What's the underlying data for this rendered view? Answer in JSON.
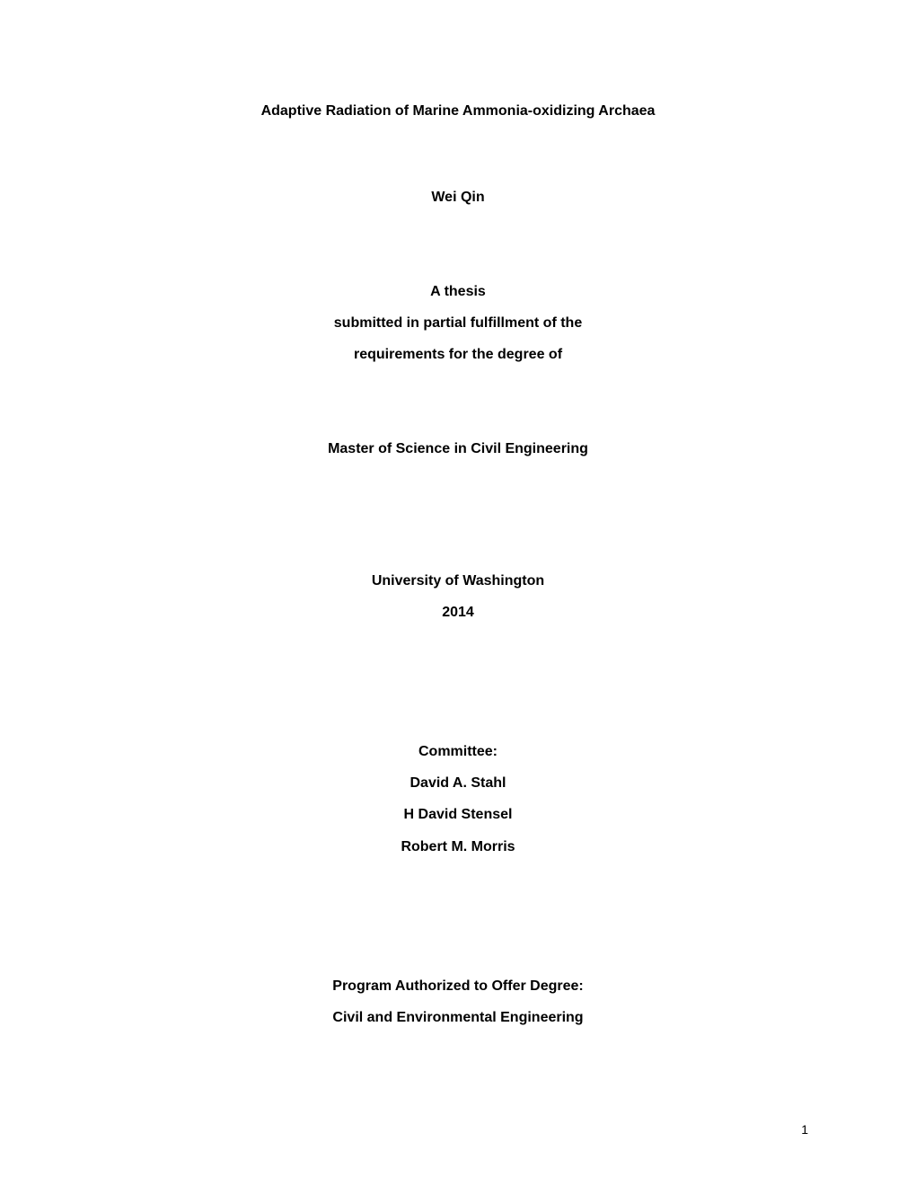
{
  "title": "Adaptive Radiation of Marine Ammonia-oxidizing Archaea",
  "author": "Wei    Qin",
  "thesis": {
    "line1": "A thesis",
    "line2": "submitted in partial fulfillment of the",
    "line3": "requirements for the degree of"
  },
  "degree": "Master of Science in Civil Engineering",
  "university": {
    "name": "University of Washington",
    "year": "2014"
  },
  "committee": {
    "heading": "Committee:",
    "members": [
      "David A. Stahl",
      "H David Stensel",
      "Robert M. Morris"
    ]
  },
  "program": {
    "line1": "Program Authorized to Offer Degree:",
    "line2": "Civil and Environmental Engineering"
  },
  "page_number": "1",
  "style": {
    "background_color": "#ffffff",
    "text_color": "#000000",
    "font_family": "Arial",
    "title_fontsize": 16,
    "body_fontsize": 16,
    "page_number_fontsize": 14,
    "font_weight": "bold"
  }
}
